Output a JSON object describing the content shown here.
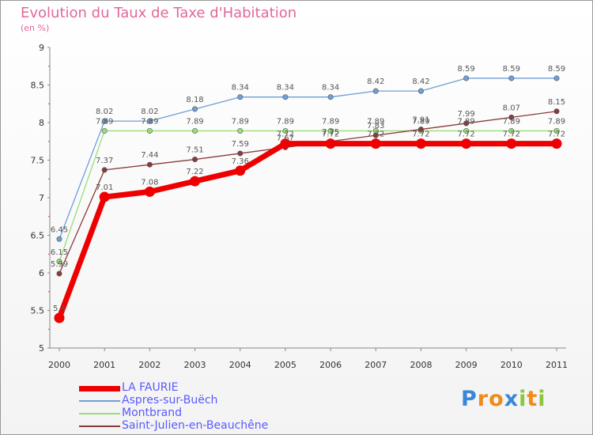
{
  "title": "Evolution du Taux de Taxe d'Habitation",
  "subtitle": "(en %)",
  "logo": {
    "text": "Proxiti",
    "letters": [
      "P",
      "r",
      "o",
      "x",
      "i",
      "t",
      "i"
    ],
    "colors": [
      "#3a86d8",
      "#f08a1c",
      "#f08a1c",
      "#3a86d8",
      "#8cc63f",
      "#f08a1c",
      "#8cc63f"
    ]
  },
  "chart_data": {
    "type": "line",
    "title": "Evolution du Taux de Taxe d'Habitation",
    "ylabel": "(en %)",
    "xlabel": "",
    "x": [
      "2000",
      "2001",
      "2002",
      "2003",
      "2004",
      "2005",
      "2006",
      "2007",
      "2008",
      "2009",
      "2010",
      "2011"
    ],
    "ylim": [
      5,
      9
    ],
    "yticks": [
      "5",
      "5.5",
      "6",
      "6.5",
      "7",
      "7.5",
      "8",
      "8.5",
      "9"
    ],
    "grid": false,
    "legend_position": "bottom-left",
    "series": [
      {
        "name": "LA FAURIE",
        "color": "#ee0000",
        "values": [
          5.4,
          7.01,
          7.08,
          7.22,
          7.36,
          7.72,
          7.72,
          7.72,
          7.72,
          7.72,
          7.72,
          7.72
        ]
      },
      {
        "name": "Aspres-sur-Buëch",
        "color": "#6e9fd6",
        "values": [
          6.45,
          8.02,
          8.02,
          8.18,
          8.34,
          8.34,
          8.34,
          8.42,
          8.42,
          8.59,
          8.59,
          8.59
        ]
      },
      {
        "name": "Montbrand",
        "color": "#99dd77",
        "values": [
          6.15,
          7.89,
          7.89,
          7.89,
          7.89,
          7.89,
          7.89,
          7.89,
          7.89,
          7.89,
          7.89,
          7.89
        ]
      },
      {
        "name": "Saint-Julien-en-Beauchêne",
        "color": "#8a3a3a",
        "values": [
          5.99,
          7.37,
          7.44,
          7.51,
          7.59,
          7.67,
          7.75,
          7.83,
          7.91,
          7.99,
          8.07,
          8.15
        ]
      }
    ]
  }
}
